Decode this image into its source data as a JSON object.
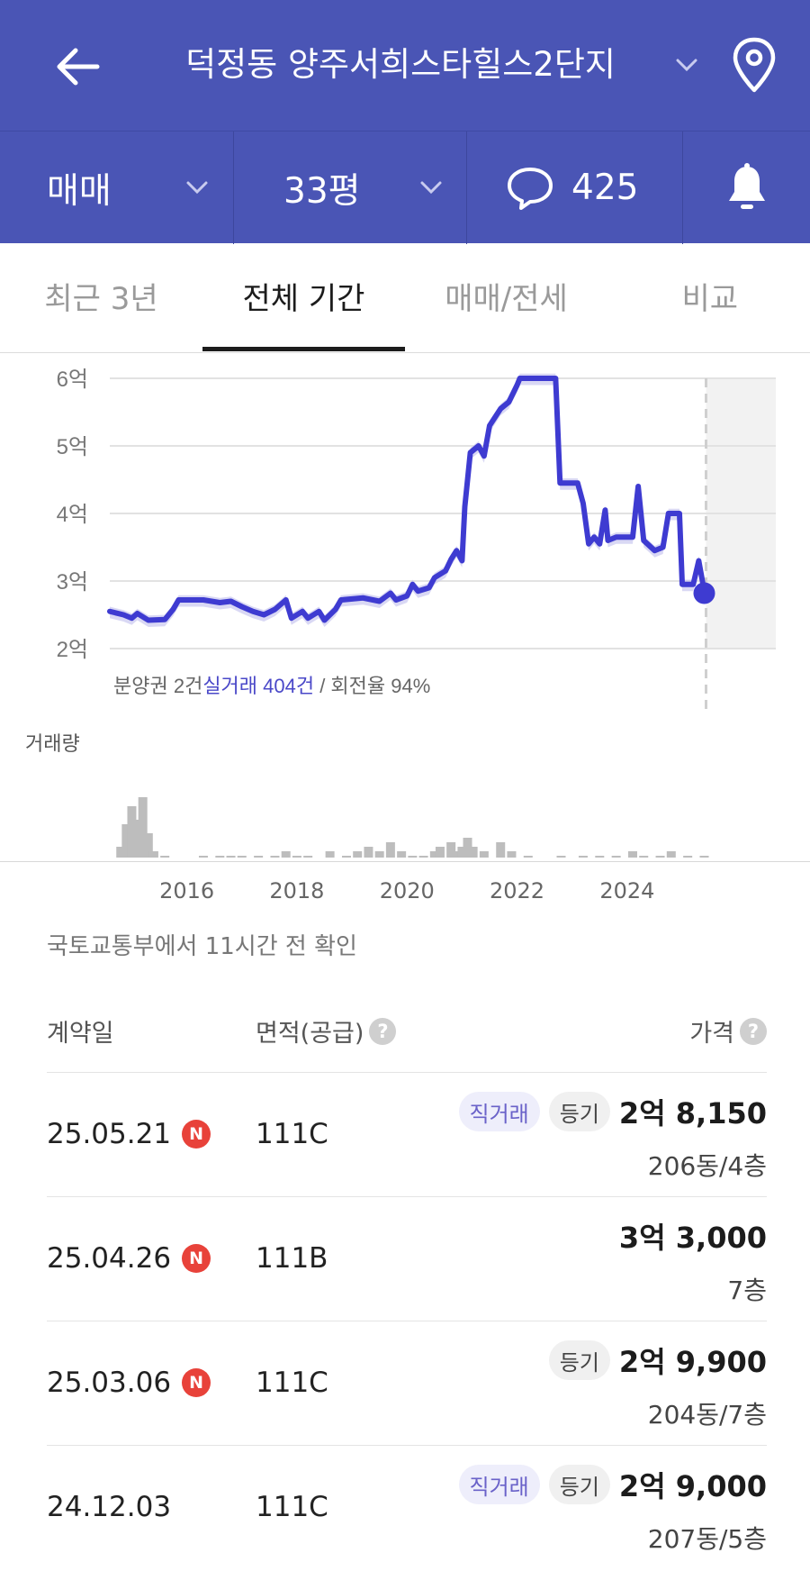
{
  "header": {
    "title": "덕정동 양주서희스타힐스2단지",
    "back_icon": "arrow-left-icon",
    "location_icon": "map-pin-icon"
  },
  "filters": {
    "trade_type": "매매",
    "size": "33평",
    "comment_count": "425",
    "bell_icon": "bell-icon"
  },
  "tabs": [
    {
      "label": "최근 3년",
      "active": false
    },
    {
      "label": "전체 기간",
      "active": true
    },
    {
      "label": "매매/전세",
      "active": false
    },
    {
      "label": "비교",
      "active": false
    }
  ],
  "chart_info": {
    "presale_prefix": "분양권 2건",
    "real_trade": "실거래 404건",
    "turnover": " / 회전율 94%",
    "volume_label": "거래량"
  },
  "chart_data": {
    "type": "line",
    "y_unit": "억",
    "ylim": [
      2,
      6
    ],
    "y_ticks": [
      "6억",
      "5억",
      "4억",
      "3억",
      "2억"
    ],
    "x_ticks": [
      "2016",
      "2018",
      "2020",
      "2022",
      "2024"
    ],
    "xlim": [
      2014.6,
      2026.7
    ],
    "series": [
      {
        "points": [
          [
            2014.6,
            2.55
          ],
          [
            2014.85,
            2.5
          ],
          [
            2015.0,
            2.45
          ],
          [
            2015.1,
            2.52
          ],
          [
            2015.3,
            2.42
          ],
          [
            2015.6,
            2.43
          ],
          [
            2015.75,
            2.58
          ],
          [
            2015.85,
            2.72
          ],
          [
            2016.3,
            2.72
          ],
          [
            2016.6,
            2.68
          ],
          [
            2016.8,
            2.7
          ],
          [
            2017.0,
            2.62
          ],
          [
            2017.2,
            2.55
          ],
          [
            2017.4,
            2.5
          ],
          [
            2017.6,
            2.58
          ],
          [
            2017.8,
            2.72
          ],
          [
            2017.9,
            2.45
          ],
          [
            2018.1,
            2.55
          ],
          [
            2018.2,
            2.45
          ],
          [
            2018.4,
            2.55
          ],
          [
            2018.5,
            2.42
          ],
          [
            2018.7,
            2.58
          ],
          [
            2018.8,
            2.72
          ],
          [
            2019.2,
            2.75
          ],
          [
            2019.5,
            2.7
          ],
          [
            2019.7,
            2.82
          ],
          [
            2019.8,
            2.72
          ],
          [
            2020.0,
            2.78
          ],
          [
            2020.1,
            2.95
          ],
          [
            2020.2,
            2.85
          ],
          [
            2020.4,
            2.9
          ],
          [
            2020.5,
            3.05
          ],
          [
            2020.7,
            3.15
          ],
          [
            2020.8,
            3.32
          ],
          [
            2020.9,
            3.45
          ],
          [
            2021.0,
            3.3
          ],
          [
            2021.05,
            4.1
          ],
          [
            2021.15,
            4.9
          ],
          [
            2021.3,
            5.0
          ],
          [
            2021.4,
            4.85
          ],
          [
            2021.5,
            5.3
          ],
          [
            2021.7,
            5.55
          ],
          [
            2021.85,
            5.65
          ],
          [
            2022.0,
            5.9
          ],
          [
            2022.05,
            6.0
          ],
          [
            2022.7,
            6.0
          ],
          [
            2022.78,
            4.45
          ],
          [
            2023.1,
            4.45
          ],
          [
            2023.2,
            4.15
          ],
          [
            2023.3,
            3.55
          ],
          [
            2023.4,
            3.65
          ],
          [
            2023.5,
            3.55
          ],
          [
            2023.6,
            4.05
          ],
          [
            2023.65,
            3.6
          ],
          [
            2023.8,
            3.65
          ],
          [
            2024.1,
            3.65
          ],
          [
            2024.2,
            4.4
          ],
          [
            2024.3,
            3.6
          ],
          [
            2024.5,
            3.45
          ],
          [
            2024.65,
            3.5
          ],
          [
            2024.75,
            4.0
          ],
          [
            2024.95,
            4.0
          ],
          [
            2025.0,
            2.95
          ],
          [
            2025.2,
            2.95
          ],
          [
            2025.3,
            3.3
          ],
          [
            2025.4,
            2.85
          ]
        ]
      }
    ],
    "latest_point": [
      2025.4,
      2.82
    ],
    "volume": [
      {
        "x": 2014.8,
        "v": 3
      },
      {
        "x": 2014.9,
        "v": 8
      },
      {
        "x": 2015.0,
        "v": 12
      },
      {
        "x": 2015.1,
        "v": 9
      },
      {
        "x": 2015.2,
        "v": 14
      },
      {
        "x": 2015.3,
        "v": 6
      },
      {
        "x": 2015.4,
        "v": 2
      },
      {
        "x": 2015.6,
        "v": 1
      },
      {
        "x": 2016.3,
        "v": 1
      },
      {
        "x": 2016.6,
        "v": 1
      },
      {
        "x": 2016.8,
        "v": 1
      },
      {
        "x": 2017.0,
        "v": 1
      },
      {
        "x": 2017.3,
        "v": 1
      },
      {
        "x": 2017.6,
        "v": 1
      },
      {
        "x": 2017.8,
        "v": 2
      },
      {
        "x": 2018.0,
        "v": 1
      },
      {
        "x": 2018.2,
        "v": 1
      },
      {
        "x": 2018.6,
        "v": 2
      },
      {
        "x": 2018.9,
        "v": 1
      },
      {
        "x": 2019.1,
        "v": 2
      },
      {
        "x": 2019.3,
        "v": 3
      },
      {
        "x": 2019.5,
        "v": 2
      },
      {
        "x": 2019.7,
        "v": 4
      },
      {
        "x": 2019.9,
        "v": 2
      },
      {
        "x": 2020.1,
        "v": 1
      },
      {
        "x": 2020.3,
        "v": 1
      },
      {
        "x": 2020.5,
        "v": 2
      },
      {
        "x": 2020.6,
        "v": 3
      },
      {
        "x": 2020.8,
        "v": 4
      },
      {
        "x": 2020.9,
        "v": 2
      },
      {
        "x": 2021.0,
        "v": 3
      },
      {
        "x": 2021.1,
        "v": 5
      },
      {
        "x": 2021.2,
        "v": 3
      },
      {
        "x": 2021.4,
        "v": 2
      },
      {
        "x": 2021.7,
        "v": 4
      },
      {
        "x": 2021.9,
        "v": 2
      },
      {
        "x": 2022.2,
        "v": 1
      },
      {
        "x": 2022.8,
        "v": 1
      },
      {
        "x": 2023.2,
        "v": 1
      },
      {
        "x": 2023.5,
        "v": 1
      },
      {
        "x": 2023.8,
        "v": 1
      },
      {
        "x": 2024.1,
        "v": 2
      },
      {
        "x": 2024.3,
        "v": 1
      },
      {
        "x": 2024.6,
        "v": 1
      },
      {
        "x": 2024.8,
        "v": 2
      },
      {
        "x": 2025.1,
        "v": 1
      },
      {
        "x": 2025.4,
        "v": 1
      }
    ],
    "colors": {
      "line": "#3e3bd1",
      "band": "#c9c8f0",
      "grid": "#e2e2e2",
      "future": "#f2f2f2",
      "volume": "#bdbdbd"
    }
  },
  "source": "국토교통부에서 11시간 전 확인",
  "table": {
    "headers": {
      "date": "계약일",
      "area": "면적(공급)",
      "price": "가격"
    },
    "rows": [
      {
        "date": "25.05.21",
        "new": "N",
        "area": "111C",
        "direct": "직거래",
        "registered": "등기",
        "price": "2억 8,150",
        "floor": "206동/4층"
      },
      {
        "date": "25.04.26",
        "new": "N",
        "area": "111B",
        "direct": "",
        "registered": "",
        "price": "3억 3,000",
        "floor": "7층"
      },
      {
        "date": "25.03.06",
        "new": "N",
        "area": "111C",
        "direct": "",
        "registered": "등기",
        "price": "2억 9,900",
        "floor": "204동/7층"
      },
      {
        "date": "24.12.03",
        "new": "",
        "area": "111C",
        "direct": "직거래",
        "registered": "등기",
        "price": "2억 9,000",
        "floor": "207동/5층"
      }
    ]
  }
}
